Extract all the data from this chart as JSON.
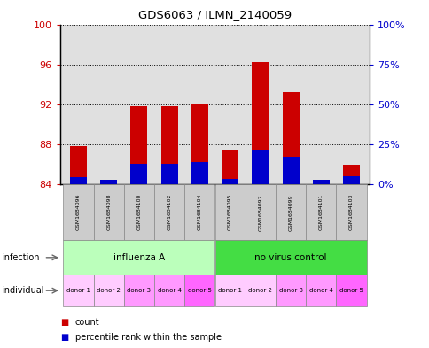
{
  "title": "GDS6063 / ILMN_2140059",
  "samples": [
    "GSM1684096",
    "GSM1684098",
    "GSM1684100",
    "GSM1684102",
    "GSM1684104",
    "GSM1684095",
    "GSM1684097",
    "GSM1684099",
    "GSM1684101",
    "GSM1684103"
  ],
  "red_values": [
    87.8,
    84.2,
    91.8,
    91.8,
    92.0,
    87.5,
    96.2,
    93.2,
    84.1,
    86.0
  ],
  "blue_values": [
    84.7,
    84.5,
    86.1,
    86.1,
    86.2,
    84.6,
    87.5,
    86.8,
    84.5,
    84.8
  ],
  "ymin": 84,
  "ymax": 100,
  "yticks_left": [
    84,
    88,
    92,
    96,
    100
  ],
  "yticks_right_vals": [
    "0%",
    "25%",
    "50%",
    "75%",
    "100%"
  ],
  "infection_groups": [
    {
      "label": "influenza A",
      "start": 0,
      "end": 5,
      "color": "#bbffbb"
    },
    {
      "label": "no virus control",
      "start": 5,
      "end": 10,
      "color": "#44dd44"
    }
  ],
  "individual_labels": [
    "donor 1",
    "donor 2",
    "donor 3",
    "donor 4",
    "donor 5",
    "donor 1",
    "donor 2",
    "donor 3",
    "donor 4",
    "donor 5"
  ],
  "individual_colors": [
    "#ffccff",
    "#ffccff",
    "#ff99ff",
    "#ff99ff",
    "#ff66ff",
    "#ffccff",
    "#ffccff",
    "#ff99ff",
    "#ff99ff",
    "#ff66ff"
  ],
  "bar_width": 0.55,
  "red_color": "#cc0000",
  "blue_color": "#0000cc",
  "left_tick_color": "#cc0000",
  "right_tick_color": "#0000cc",
  "plot_bg_color": "#e0e0e0",
  "sample_box_color": "#cccccc",
  "legend_red_label": "count",
  "legend_blue_label": "percentile rank within the sample",
  "infection_label": "infection",
  "individual_label": "individual"
}
